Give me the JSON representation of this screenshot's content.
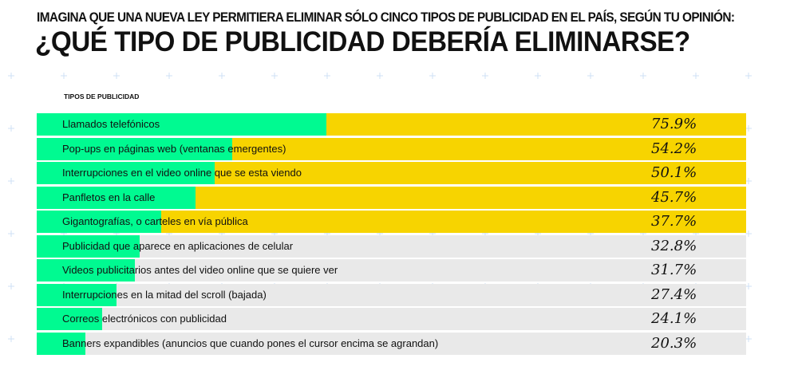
{
  "header": {
    "subtitle": "IMAGINA QUE UNA NUEVA LEY PERMITIERA ELIMINAR SÓLO CINCO TIPOS DE PUBLICIDAD EN EL PAÍS, SEGÚN TU OPINIÓN:",
    "title": "¿QUÉ TIPO DE PUBLICIDAD DEBERÍA ELIMINARSE?"
  },
  "chart_data": {
    "type": "bar",
    "orientation": "horizontal",
    "title": "¿QUÉ TIPO DE PUBLICIDAD DEBERÍA ELIMINARSE?",
    "ylabel": "TIPOS DE PUBLICIDAD",
    "categories": [
      "Llamados telefónicos",
      "Pop-ups en páginas web (ventanas emergentes)",
      "Interrupciones en el video online que se esta viendo",
      "Panfletos en la calle",
      "Gigantografías, o carteles en vía pública",
      "Publicidad que aparece en aplicaciones de celular",
      "Videos publicitarios antes del video online que se quiere ver",
      "Interrupciones en la mitad del scroll (bajada)",
      "Correos electrónicos con publicidad",
      "Banners expandibles (anuncios que cuando pones el cursor encima se agrandan)"
    ],
    "values": [
      75.9,
      54.2,
      50.1,
      45.7,
      37.7,
      32.8,
      31.7,
      27.4,
      24.1,
      20.3
    ],
    "value_labels": [
      "75.9%",
      "54.2%",
      "50.1%",
      "45.7%",
      "37.7%",
      "32.8%",
      "31.7%",
      "27.4%",
      "24.1%",
      "20.3%"
    ],
    "highlighted_top_n": 5,
    "colors": {
      "value": "#00fa91",
      "top5_background": "#f7d400",
      "other_background": "#e9e9e9",
      "plus_marks": "#cfe0f5"
    }
  }
}
